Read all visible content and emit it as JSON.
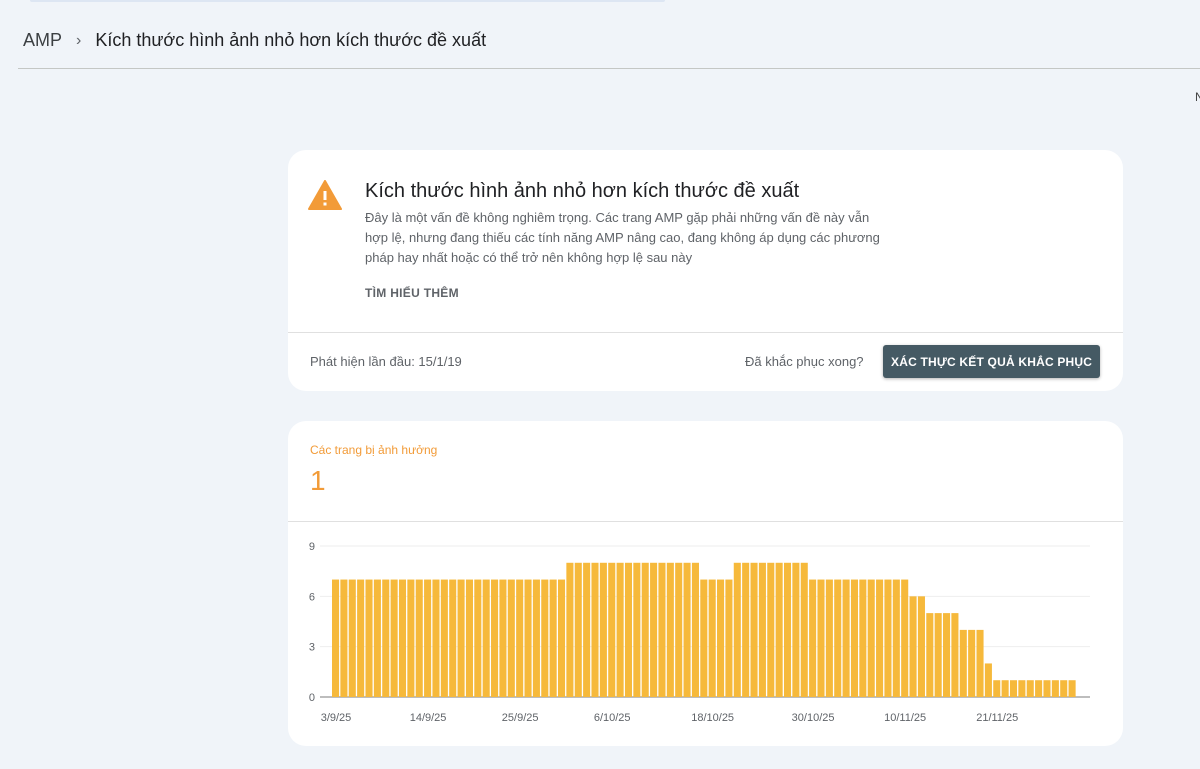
{
  "breadcrumb": {
    "root": "AMP",
    "current": "Kích thước hình ảnh nhỏ hơn kích thước đề xuất"
  },
  "edge_text": "N",
  "issue": {
    "title": "Kích thước hình ảnh nhỏ hơn kích thước đề xuất",
    "icon": "warning-icon",
    "description": "Đây là một vấn đề không nghiêm trọng. Các trang AMP gặp phải những vấn đề này vẫn hợp lệ, nhưng đang thiếu các tính năng AMP nâng cao, đang không áp dụng các phương pháp hay nhất hoặc có thể trở nên không hợp lệ sau này",
    "learn_more": "TÌM HIỂU THÊM",
    "first_detected": "Phát hiện lần đầu: 15/1/19",
    "fixed_question": "Đã khắc phục xong?",
    "validate_button": "XÁC THỰC KẾT QUẢ KHẮC PHỤC"
  },
  "colors": {
    "accent": "#f29b38",
    "bar": "#f6b93b",
    "button": "#455a64"
  },
  "affected": {
    "label": "Các trang bị ảnh hưởng",
    "value": "1"
  },
  "chart_data": {
    "type": "bar",
    "start_date": "3/9/25",
    "x_tick_labels": [
      "3/9/25",
      "14/9/25",
      "25/9/25",
      "6/10/25",
      "18/10/25",
      "30/10/25",
      "10/11/25",
      "21/11/25"
    ],
    "y_ticks": [
      0,
      3,
      6,
      9
    ],
    "ylim": [
      0,
      9
    ],
    "grid": true,
    "values": [
      7,
      7,
      7,
      7,
      7,
      7,
      7,
      7,
      7,
      7,
      7,
      7,
      7,
      7,
      7,
      7,
      7,
      7,
      7,
      7,
      7,
      7,
      7,
      7,
      7,
      7,
      7,
      7,
      8,
      8,
      8,
      8,
      8,
      8,
      8,
      8,
      8,
      8,
      8,
      8,
      8,
      8,
      8,
      8,
      7,
      7,
      7,
      7,
      8,
      8,
      8,
      8,
      8,
      8,
      8,
      8,
      8,
      7,
      7,
      7,
      7,
      7,
      7,
      7,
      7,
      7,
      7,
      7,
      7,
      6,
      6,
      5,
      5,
      5,
      5,
      4,
      4,
      4,
      2,
      1,
      1,
      1,
      1,
      1,
      1,
      1,
      1,
      1,
      1
    ]
  }
}
